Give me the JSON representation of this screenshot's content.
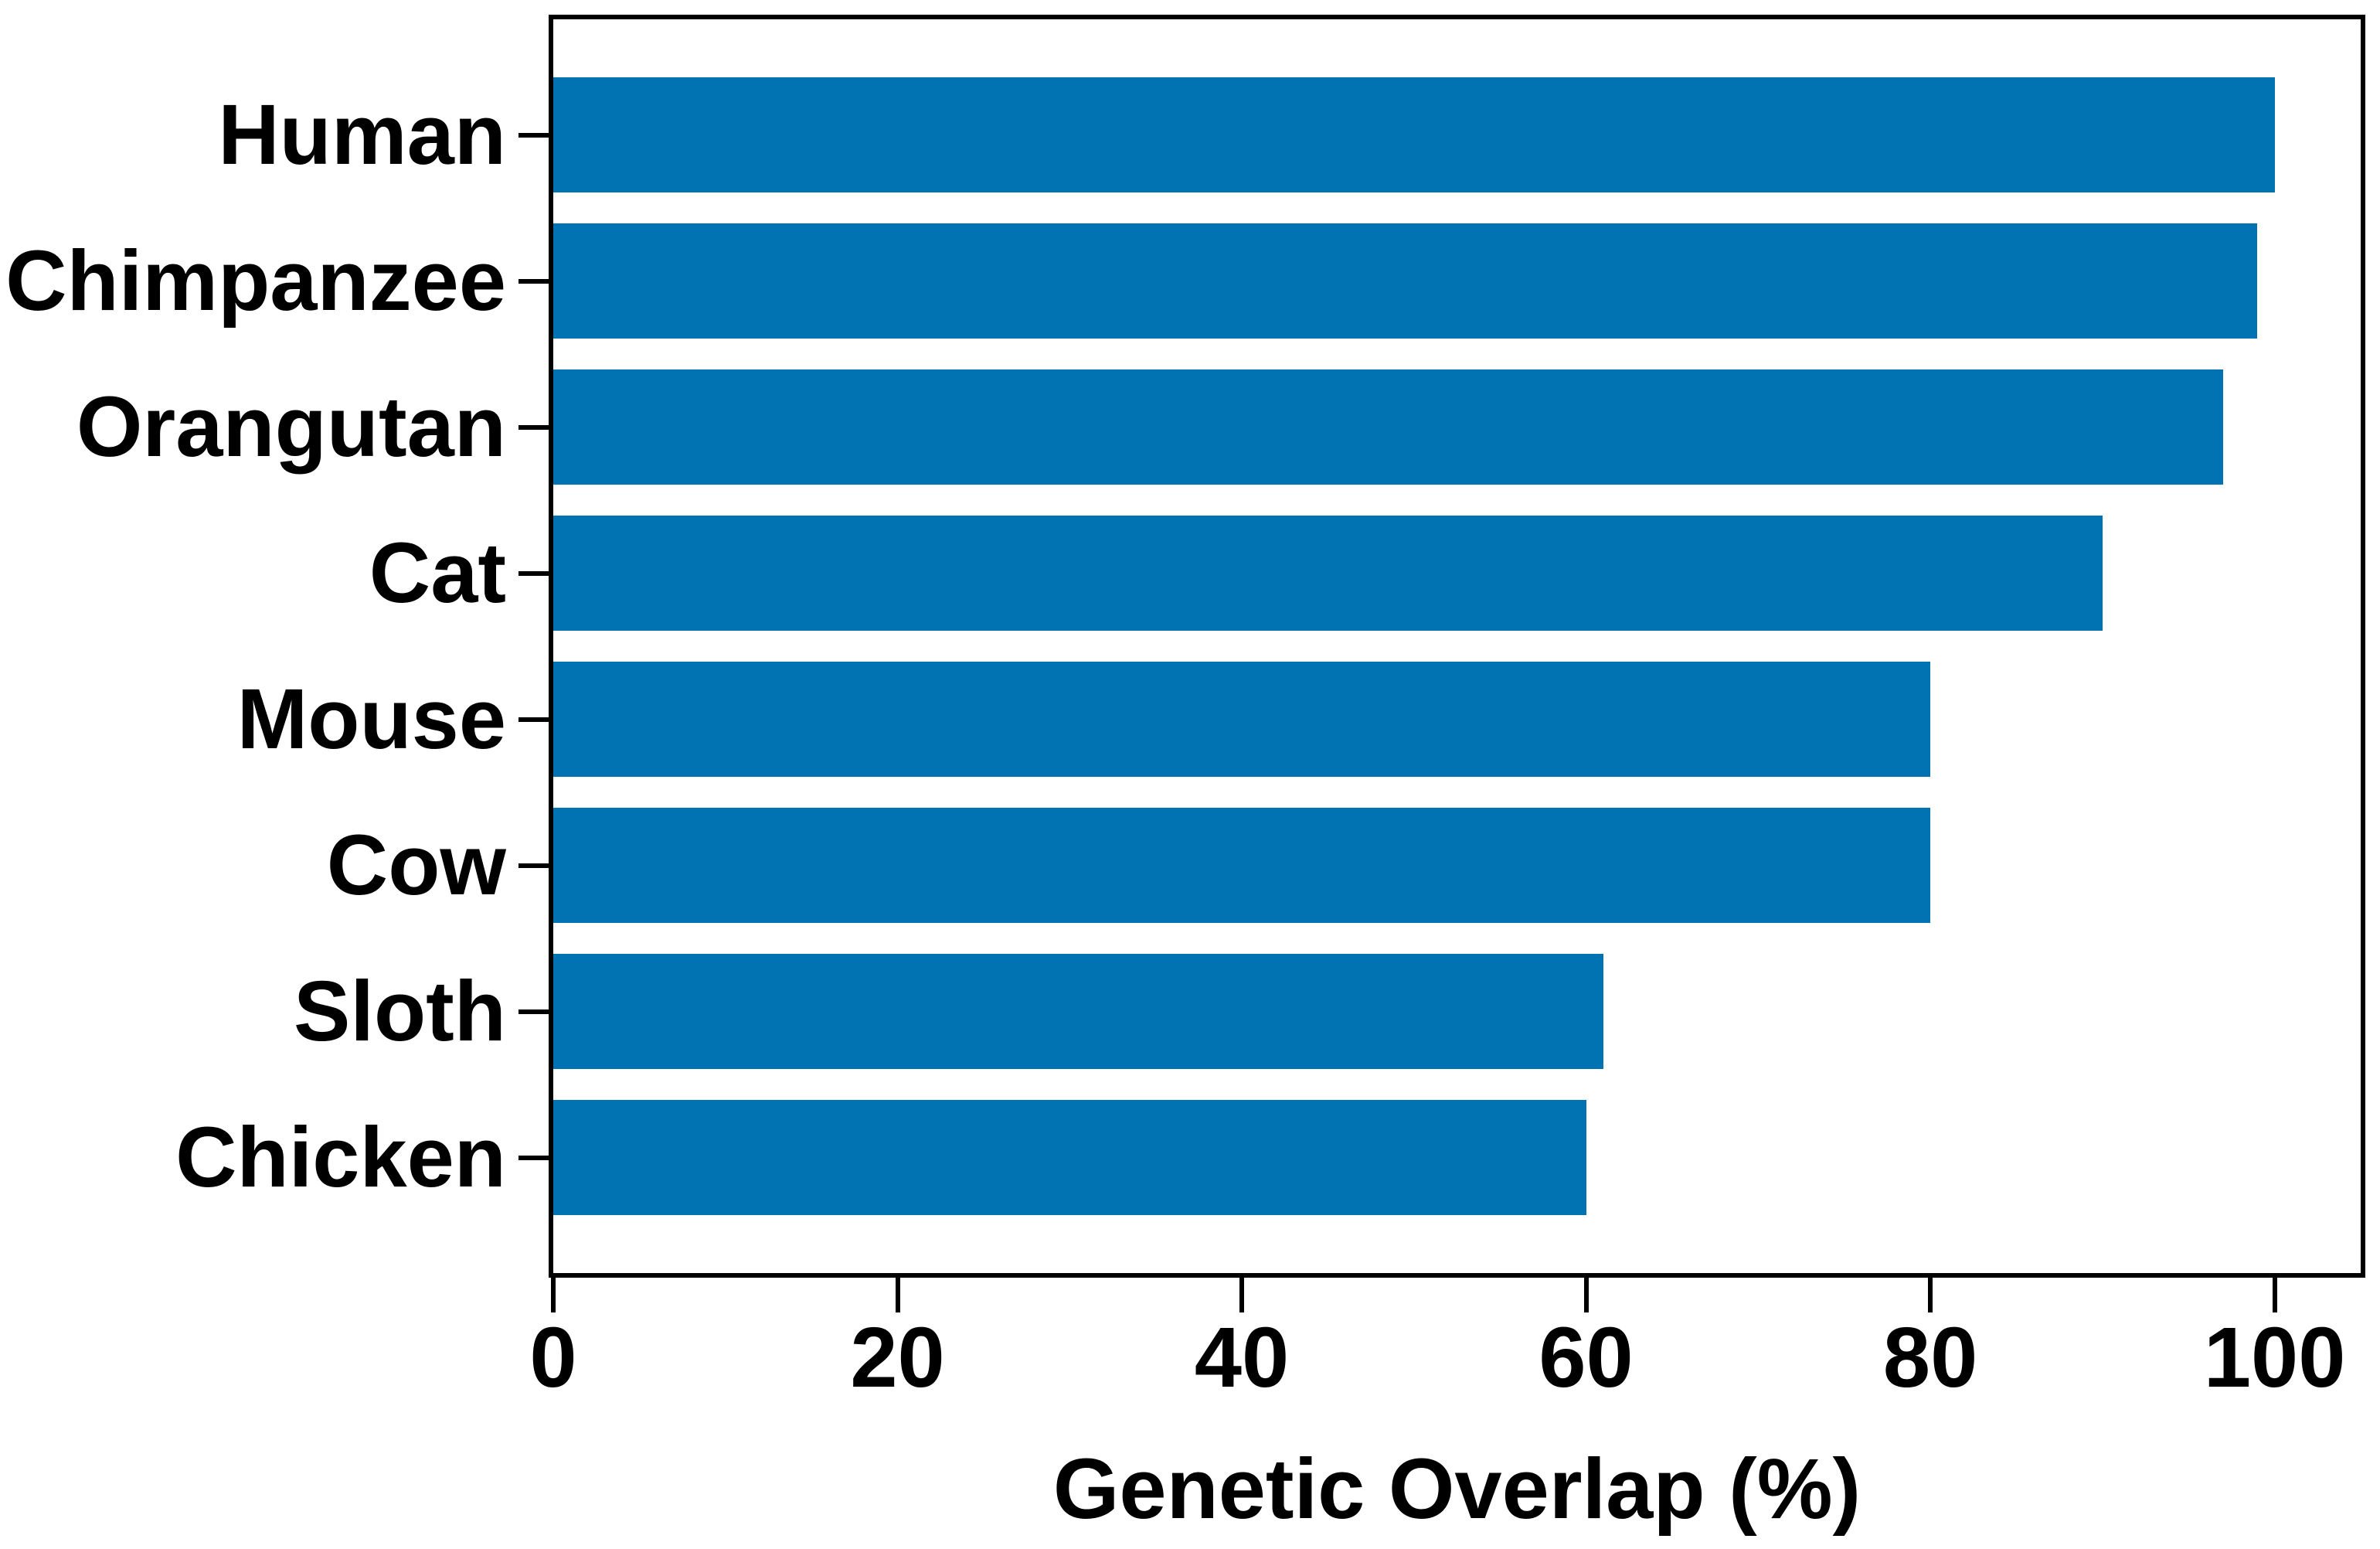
{
  "chart_data": {
    "type": "bar",
    "orientation": "horizontal",
    "categories": [
      "Human",
      "Chimpanzee",
      "Orangutan",
      "Cat",
      "Mouse",
      "Cow",
      "Sloth",
      "Chicken"
    ],
    "values": [
      100,
      99,
      97,
      90,
      80,
      80,
      61,
      60
    ],
    "xlabel": "Genetic Overlap (%)",
    "ylabel": "",
    "title": "",
    "xticks": [
      0,
      20,
      40,
      60,
      80,
      100
    ],
    "xlim": [
      0,
      105
    ],
    "grid": false,
    "legend": "none",
    "bar_color": "#0173b2",
    "axis_color": "#000000",
    "text_color": "#000000",
    "background_color": "#ffffff"
  }
}
